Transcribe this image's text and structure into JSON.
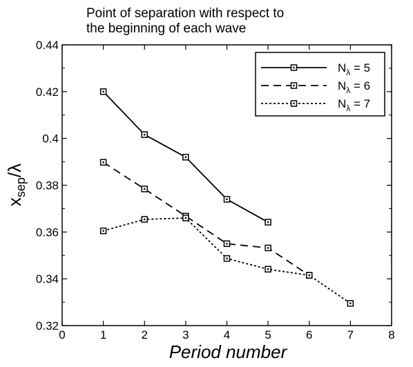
{
  "chart_data": {
    "type": "line",
    "title": "Point of separation with respect to the beginning of each wave",
    "title_lines": [
      "Point of separation with respect to",
      "the beginning of each wave"
    ],
    "xlabel": "Period number",
    "ylabel": {
      "base": "x",
      "sub": "sep",
      "tail": "/λ"
    },
    "xlim": [
      0,
      8
    ],
    "ylim": [
      0.32,
      0.44
    ],
    "xticks": [
      0,
      1,
      2,
      3,
      4,
      5,
      6,
      7,
      8
    ],
    "yticks": [
      0.32,
      0.34,
      0.36,
      0.38,
      0.4,
      0.42,
      0.44
    ],
    "ytick_labels": [
      "0.32",
      "0.34",
      "0.36",
      "0.38",
      "0.4",
      "0.42",
      "0.44"
    ],
    "grid": false,
    "legend_position": "top-right",
    "marker": "square",
    "series": [
      {
        "name": "Nλ = 5",
        "legend": {
          "base": "N",
          "sub": "λ",
          "tail": " = 5"
        },
        "line_style": "solid",
        "x": [
          1,
          2,
          3,
          4,
          5
        ],
        "y": [
          0.42,
          0.4016,
          0.392,
          0.374,
          0.3642
        ]
      },
      {
        "name": "Nλ = 6",
        "legend": {
          "base": "N",
          "sub": "λ",
          "tail": " = 6"
        },
        "line_style": "dashed",
        "x": [
          1,
          2,
          3,
          4,
          5,
          6
        ],
        "y": [
          0.3898,
          0.3784,
          0.3668,
          0.355,
          0.3532,
          0.3415
        ]
      },
      {
        "name": "Nλ = 7",
        "legend": {
          "base": "N",
          "sub": "λ",
          "tail": " = 7"
        },
        "line_style": "dotted",
        "x": [
          1,
          2,
          3,
          4,
          5,
          6,
          7
        ],
        "y": [
          0.3605,
          0.3654,
          0.366,
          0.3487,
          0.3441,
          0.3415,
          0.3295
        ]
      }
    ]
  }
}
